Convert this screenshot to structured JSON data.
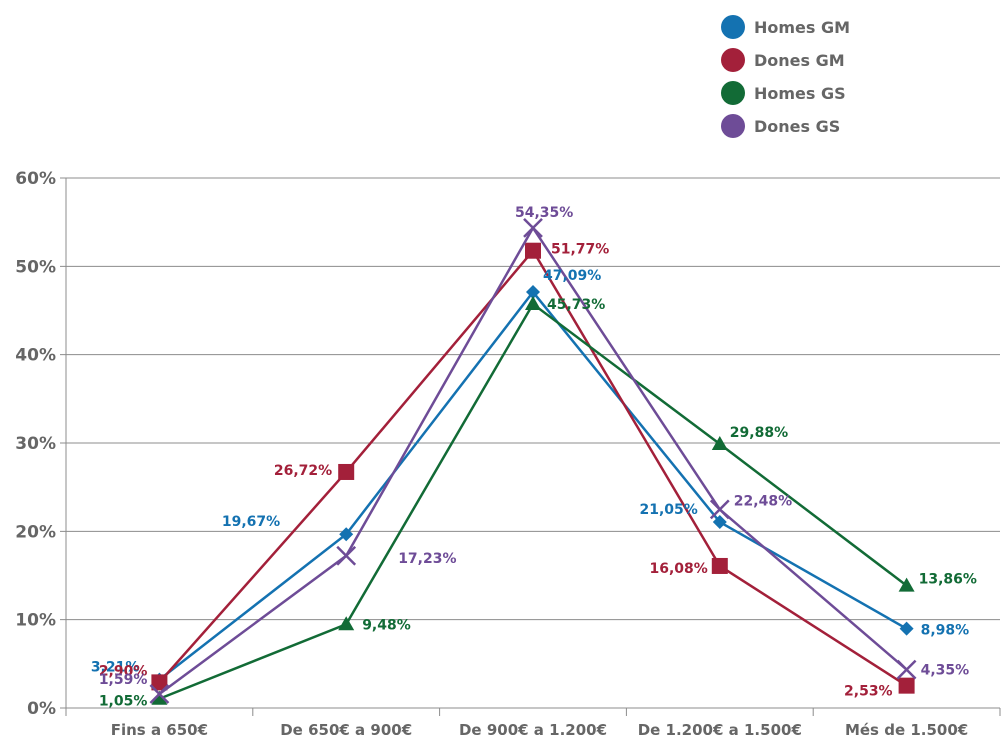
{
  "chart_data": {
    "type": "line",
    "categories": [
      "Fins a 650€",
      "De 650€ a 900€",
      "De 900€ a 1.200€",
      "De 1.200€ a 1.500€",
      "Més de 1.500€"
    ],
    "ylim": [
      0,
      60
    ],
    "yticks": [
      "0%",
      "10%",
      "20%",
      "30%",
      "40%",
      "50%",
      "60%"
    ],
    "grid": true,
    "legend_position": "top-right",
    "series": [
      {
        "name": "Homes GM",
        "color": "#1472b1",
        "marker": "diamond",
        "values": [
          3.21,
          19.67,
          47.09,
          21.05,
          8.98
        ],
        "labels": [
          "3,21%",
          "19,67%",
          "47,09%",
          "21,05%",
          "8,98%"
        ]
      },
      {
        "name": "Dones GM",
        "color": "#a3203a",
        "marker": "square",
        "values": [
          2.9,
          26.72,
          51.77,
          16.08,
          2.53
        ],
        "labels": [
          "2,90%",
          "26,72%",
          "51,77%",
          "16,08%",
          "2,53%"
        ]
      },
      {
        "name": "Homes GS",
        "color": "#126b36",
        "marker": "triangle",
        "values": [
          1.05,
          9.48,
          45.73,
          29.88,
          13.86
        ],
        "labels": [
          "1,05%",
          "9,48%",
          "45,73%",
          "29,88%",
          "13,86%"
        ]
      },
      {
        "name": "Dones GS",
        "color": "#6e4c97",
        "marker": "cross",
        "values": [
          1.59,
          17.23,
          54.35,
          22.48,
          4.35
        ],
        "labels": [
          "1,59%",
          "17,23%",
          "54,35%",
          "22,48%",
          "4,35%"
        ]
      }
    ]
  }
}
